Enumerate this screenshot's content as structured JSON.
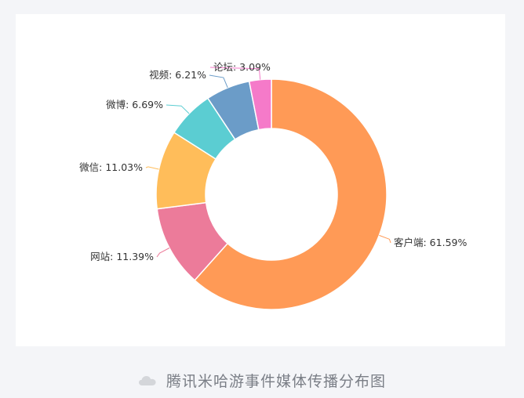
{
  "chart_data": {
    "type": "pie",
    "variant": "donut",
    "slices": [
      {
        "label": "客户端",
        "value": 61.59,
        "color": "#ff9a56"
      },
      {
        "label": "网站",
        "value": 11.39,
        "color": "#ec7b9a"
      },
      {
        "label": "微信",
        "value": 11.03,
        "color": "#ffbd5a"
      },
      {
        "label": "微博",
        "value": 6.69,
        "color": "#5bcdd2"
      },
      {
        "label": "视频",
        "value": 6.21,
        "color": "#6b9cc8"
      },
      {
        "label": "论坛",
        "value": 3.09,
        "color": "#f57ac9"
      }
    ],
    "label_format": "{label}: {value}%",
    "legend": "none"
  },
  "caption": {
    "text": "腾讯米哈游事件媒体传播分布图",
    "icon": "cloud-icon"
  }
}
